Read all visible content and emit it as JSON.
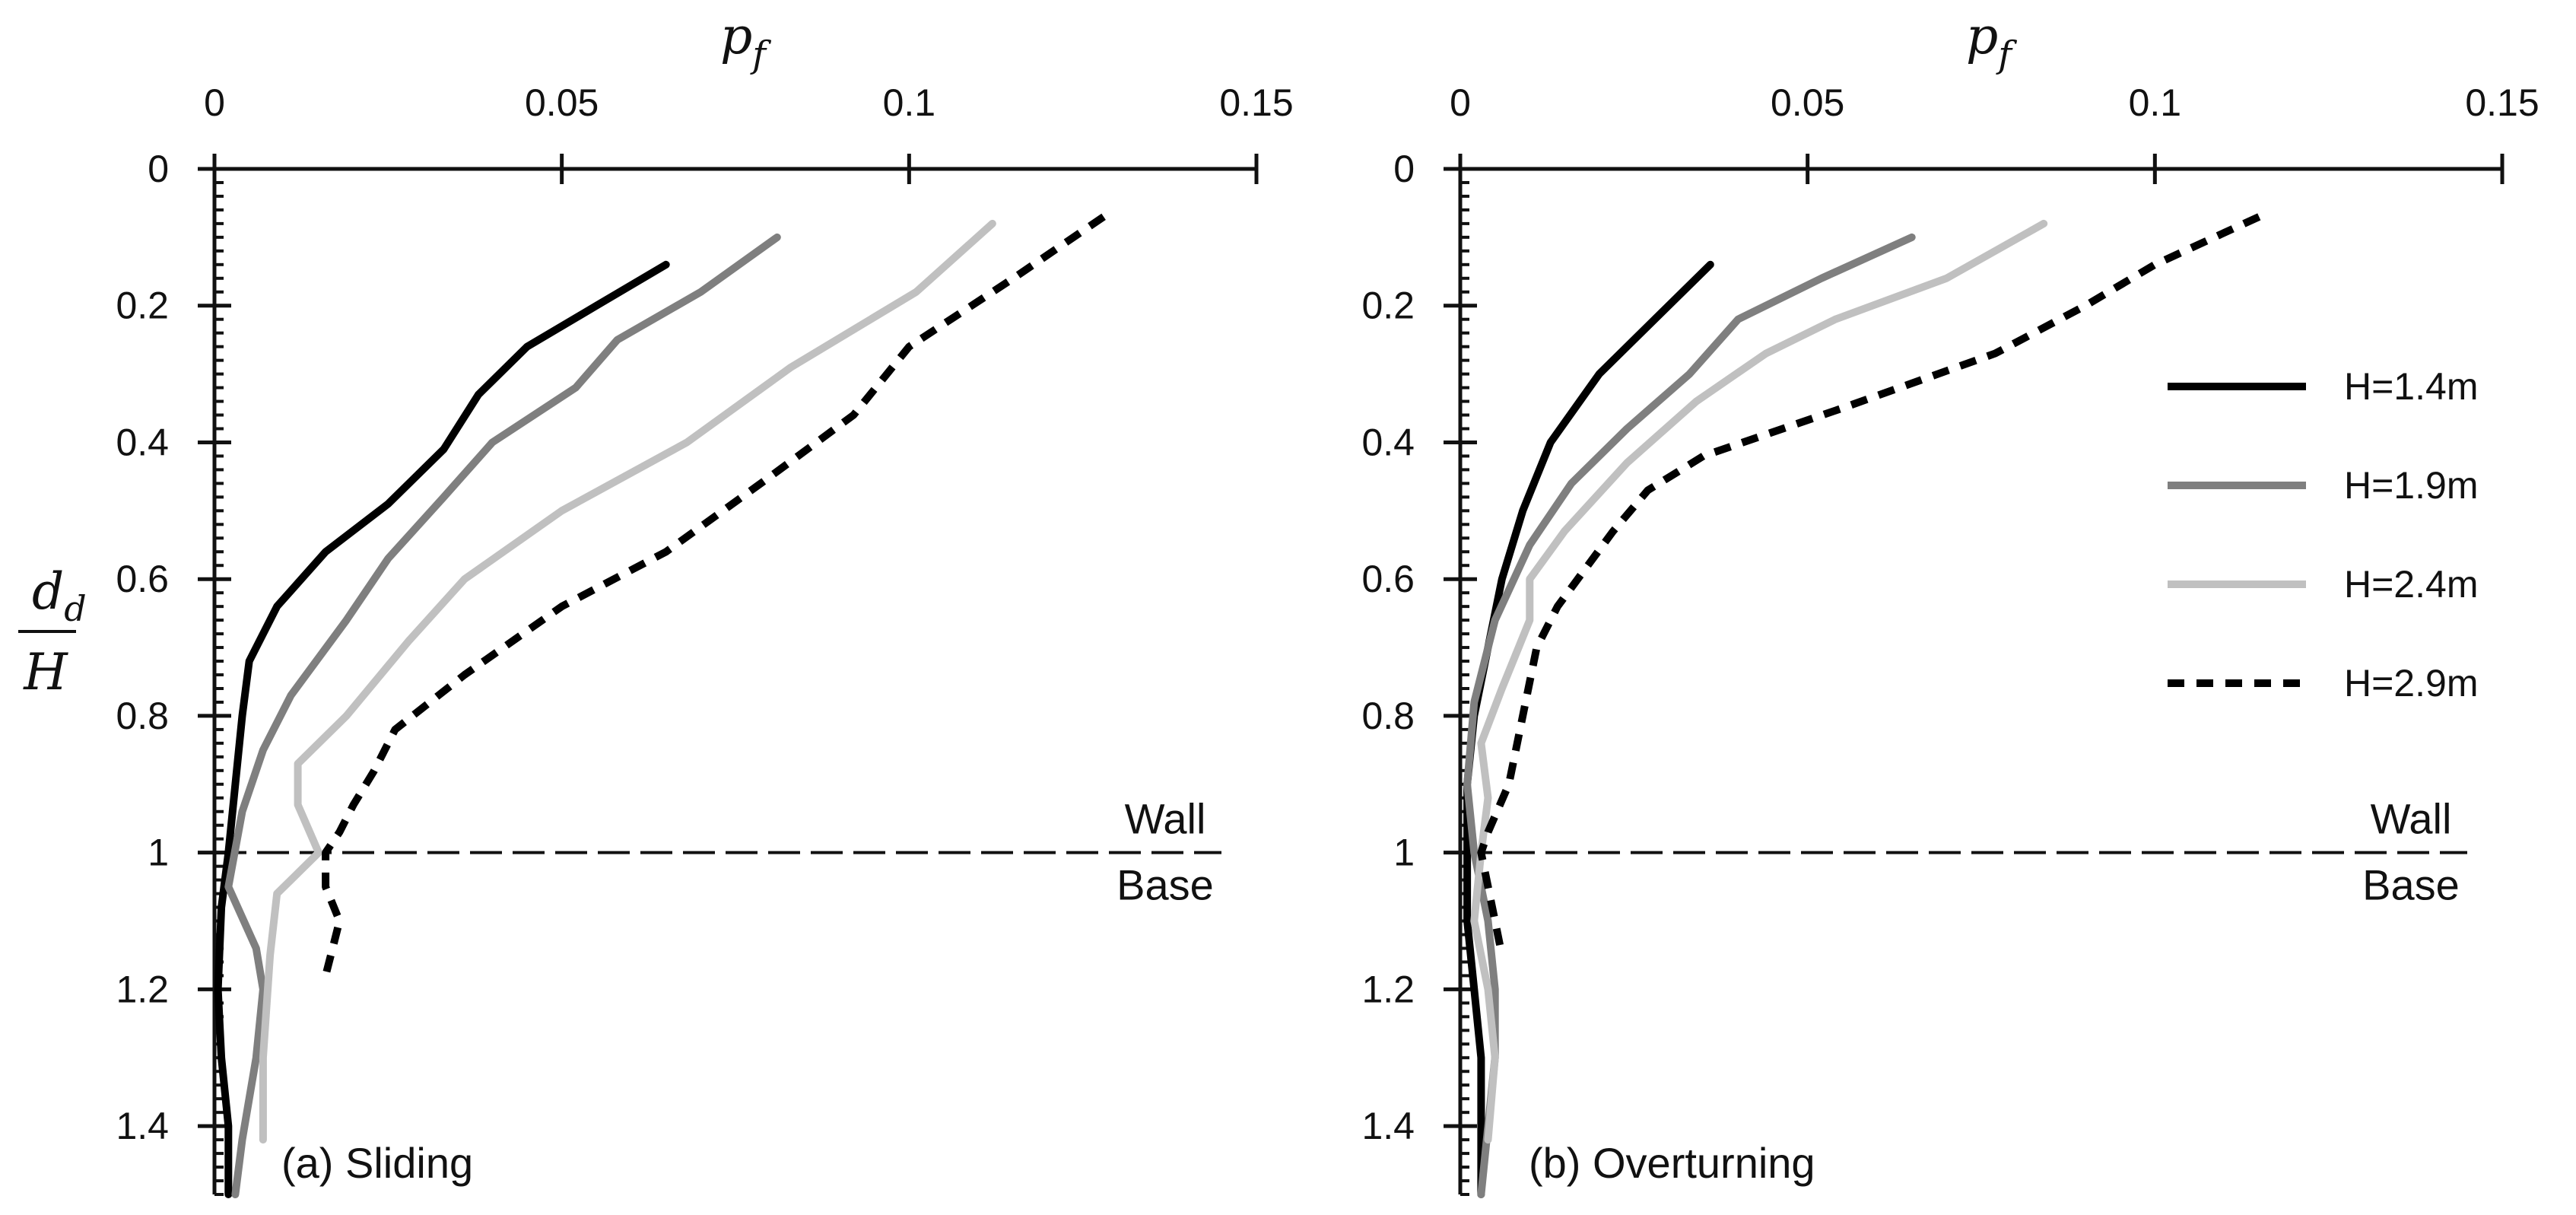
{
  "figure": {
    "x_axis_label": "p",
    "x_axis_label_sub": "f",
    "y_axis_label_num": "d",
    "y_axis_label_num_sub": "d",
    "y_axis_label_den": "H",
    "wall_label": "Wall",
    "base_label": "Base",
    "x_ticks": [
      "0",
      "0.05",
      "0.1",
      "0.15"
    ],
    "y_ticks": [
      "0",
      "0.2",
      "0.4",
      "0.6",
      "0.8",
      "1",
      "1.2",
      "1.4"
    ]
  },
  "legend": [
    {
      "label": "H=1.4m",
      "color": "#000000",
      "dash": "solid"
    },
    {
      "label": "H=1.9m",
      "color": "#7f7f7f",
      "dash": "solid"
    },
    {
      "label": "H=2.4m",
      "color": "#c0c0c0",
      "dash": "solid"
    },
    {
      "label": "H=2.9m",
      "color": "#000000",
      "dash": "dashed"
    }
  ],
  "chart_data": [
    {
      "type": "line",
      "title": "(a) Sliding",
      "xlabel": "p_f",
      "ylabel": "d_d/H",
      "xlim": [
        0,
        0.15
      ],
      "ylim": [
        1.5,
        0
      ],
      "x_ticks": [
        0,
        0.05,
        0.1,
        0.15
      ],
      "y_ticks": [
        0,
        0.2,
        0.4,
        0.6,
        0.8,
        1,
        1.2,
        1.4
      ],
      "reference_line": {
        "y": 1.0,
        "style": "dashed",
        "labels": [
          "Wall",
          "Base"
        ]
      },
      "series": [
        {
          "name": "H=1.4m",
          "x": [
            0.065,
            0.055,
            0.045,
            0.038,
            0.033,
            0.025,
            0.016,
            0.009,
            0.005,
            0.004,
            0.003,
            0.002,
            0.001,
            0.0005,
            0.001,
            0.002,
            0.002
          ],
          "y": [
            0.14,
            0.2,
            0.26,
            0.33,
            0.41,
            0.49,
            0.56,
            0.64,
            0.72,
            0.8,
            0.9,
            1.0,
            1.08,
            1.2,
            1.3,
            1.4,
            1.5
          ]
        },
        {
          "name": "H=1.9m",
          "x": [
            0.081,
            0.07,
            0.058,
            0.052,
            0.04,
            0.033,
            0.025,
            0.019,
            0.011,
            0.007,
            0.004,
            0.002,
            0.006,
            0.007,
            0.006,
            0.004,
            0.003
          ],
          "y": [
            0.1,
            0.18,
            0.25,
            0.32,
            0.4,
            0.48,
            0.57,
            0.66,
            0.77,
            0.85,
            0.94,
            1.05,
            1.14,
            1.2,
            1.3,
            1.42,
            1.5
          ]
        },
        {
          "name": "H=2.4m",
          "x": [
            0.112,
            0.101,
            0.083,
            0.068,
            0.05,
            0.036,
            0.028,
            0.019,
            0.012,
            0.012,
            0.015,
            0.009,
            0.008,
            0.007,
            0.007
          ],
          "y": [
            0.08,
            0.18,
            0.29,
            0.4,
            0.5,
            0.6,
            0.69,
            0.8,
            0.87,
            0.93,
            1.0,
            1.06,
            1.15,
            1.3,
            1.42
          ]
        },
        {
          "name": "H=2.9m",
          "x": [
            0.128,
            0.115,
            0.1,
            0.092,
            0.08,
            0.065,
            0.05,
            0.036,
            0.026,
            0.023,
            0.02,
            0.018,
            0.016,
            0.016,
            0.018,
            0.017,
            0.016
          ],
          "y": [
            0.07,
            0.16,
            0.26,
            0.36,
            0.45,
            0.56,
            0.64,
            0.74,
            0.82,
            0.88,
            0.93,
            0.97,
            1.0,
            1.05,
            1.1,
            1.14,
            1.18
          ]
        }
      ]
    },
    {
      "type": "line",
      "title": "(b) Overturning",
      "xlabel": "p_f",
      "ylabel": "d_d/H",
      "xlim": [
        0,
        0.15
      ],
      "ylim": [
        1.5,
        0
      ],
      "x_ticks": [
        0,
        0.05,
        0.1,
        0.15
      ],
      "y_ticks": [
        0,
        0.2,
        0.4,
        0.6,
        0.8,
        1,
        1.2,
        1.4
      ],
      "reference_line": {
        "y": 1.0,
        "style": "dashed",
        "labels": [
          "Wall",
          "Base"
        ]
      },
      "series": [
        {
          "name": "H=1.4m",
          "x": [
            0.036,
            0.028,
            0.02,
            0.013,
            0.009,
            0.006,
            0.004,
            0.002,
            0.001,
            0.001,
            0.001,
            0.002,
            0.003,
            0.003,
            0.003
          ],
          "y": [
            0.14,
            0.22,
            0.3,
            0.4,
            0.5,
            0.6,
            0.7,
            0.8,
            0.9,
            1.0,
            1.1,
            1.2,
            1.3,
            1.4,
            1.5
          ]
        },
        {
          "name": "H=1.9m",
          "x": [
            0.065,
            0.052,
            0.04,
            0.033,
            0.024,
            0.016,
            0.01,
            0.005,
            0.002,
            0.001,
            0.002,
            0.004,
            0.005,
            0.005,
            0.004,
            0.003
          ],
          "y": [
            0.1,
            0.16,
            0.22,
            0.3,
            0.38,
            0.46,
            0.55,
            0.66,
            0.78,
            0.9,
            1.0,
            1.1,
            1.2,
            1.3,
            1.4,
            1.5
          ]
        },
        {
          "name": "H=2.4m",
          "x": [
            0.084,
            0.07,
            0.054,
            0.044,
            0.034,
            0.024,
            0.015,
            0.01,
            0.01,
            0.006,
            0.003,
            0.004,
            0.003,
            0.002,
            0.004,
            0.005,
            0.004
          ],
          "y": [
            0.08,
            0.16,
            0.22,
            0.27,
            0.34,
            0.43,
            0.53,
            0.6,
            0.66,
            0.76,
            0.84,
            0.92,
            1.0,
            1.1,
            1.2,
            1.3,
            1.42
          ]
        },
        {
          "name": "H=2.9m",
          "x": [
            0.115,
            0.1,
            0.09,
            0.077,
            0.055,
            0.035,
            0.027,
            0.022,
            0.014,
            0.011,
            0.009,
            0.007,
            0.004,
            0.003,
            0.005,
            0.006
          ],
          "y": [
            0.07,
            0.14,
            0.2,
            0.27,
            0.35,
            0.42,
            0.47,
            0.53,
            0.64,
            0.7,
            0.8,
            0.9,
            0.97,
            1.0,
            1.1,
            1.15
          ]
        }
      ]
    }
  ]
}
